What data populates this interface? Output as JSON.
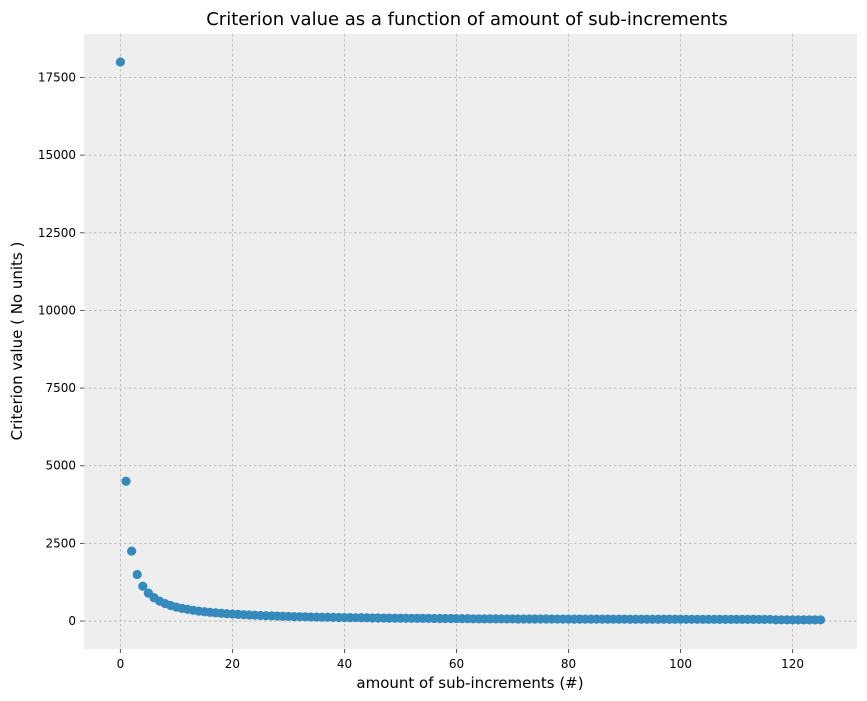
{
  "chart_data": {
    "type": "scatter",
    "title": "Criterion value as a function of amount of sub-increments",
    "xlabel": "amount of sub-increments (#)",
    "ylabel": "Criterion value ( No units )",
    "xlim": [
      -6.5,
      131.5
    ],
    "ylim": [
      -900,
      18900
    ],
    "xticks": [
      0,
      20,
      40,
      60,
      80,
      100,
      120
    ],
    "yticks": [
      0,
      2500,
      5000,
      7500,
      10000,
      12500,
      15000,
      17500
    ],
    "grid": true,
    "point_color": "#348abd",
    "background_color": "#eeeeee",
    "x": [
      0,
      1,
      2,
      3,
      4,
      5,
      6,
      7,
      8,
      9,
      10,
      11,
      12,
      13,
      14,
      15,
      16,
      17,
      18,
      19,
      20,
      21,
      22,
      23,
      24,
      25,
      26,
      27,
      28,
      29,
      30,
      31,
      32,
      33,
      34,
      35,
      36,
      37,
      38,
      39,
      40,
      41,
      42,
      43,
      44,
      45,
      46,
      47,
      48,
      49,
      50,
      51,
      52,
      53,
      54,
      55,
      56,
      57,
      58,
      59,
      60,
      61,
      62,
      63,
      64,
      65,
      66,
      67,
      68,
      69,
      70,
      71,
      72,
      73,
      74,
      75,
      76,
      77,
      78,
      79,
      80,
      81,
      82,
      83,
      84,
      85,
      86,
      87,
      88,
      89,
      90,
      91,
      92,
      93,
      94,
      95,
      96,
      97,
      98,
      99,
      100,
      101,
      102,
      103,
      104,
      105,
      106,
      107,
      108,
      109,
      110,
      111,
      112,
      113,
      114,
      115,
      116,
      117,
      118,
      119,
      120,
      121,
      122,
      123,
      124,
      125
    ],
    "y": [
      18000,
      4500,
      2250,
      1500,
      1120,
      900,
      750,
      643,
      560,
      500,
      450,
      409,
      375,
      346,
      321,
      300,
      281,
      265,
      250,
      237,
      225,
      214,
      205,
      196,
      188,
      180,
      173,
      167,
      161,
      155,
      150,
      145,
      140,
      136,
      132,
      128,
      125,
      122,
      118,
      115,
      112,
      110,
      108,
      106,
      104,
      100,
      98,
      96,
      94,
      92,
      90,
      89,
      88,
      87,
      86,
      85,
      84,
      83,
      82,
      81,
      80,
      79,
      78,
      72,
      71,
      70,
      70,
      69,
      69,
      68,
      68,
      67,
      67,
      66,
      66,
      65,
      65,
      64,
      64,
      64,
      63,
      63,
      62,
      62,
      62,
      61,
      61,
      61,
      60,
      60,
      60,
      59,
      59,
      59,
      58,
      58,
      58,
      57,
      57,
      57,
      56,
      56,
      56,
      56,
      55,
      55,
      55,
      54,
      54,
      54,
      53,
      53,
      53,
      53,
      52,
      52,
      52,
      40,
      40,
      39,
      39,
      38,
      38,
      38,
      37,
      37
    ]
  }
}
